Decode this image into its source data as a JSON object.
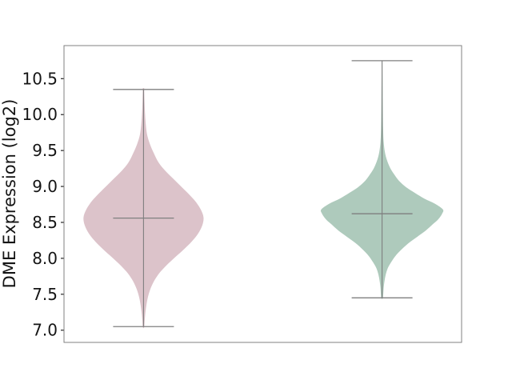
{
  "chart_data": {
    "type": "violin",
    "title": "",
    "ylabel": "DME Expression (log2)",
    "ylim": [
      6.83,
      10.96
    ],
    "yticks": [
      10.5,
      10.0,
      9.5,
      9.0,
      8.5,
      8.0,
      7.5,
      7.0
    ],
    "ytick_decimals": 1,
    "xtick_labels_visible": false,
    "grid": false,
    "legend": null,
    "axes": {
      "spine_color": "#808080",
      "tick_color": "#262626",
      "text_color": "#151515",
      "background": "#ffffff"
    },
    "series": [
      {
        "name": "violin-left",
        "x_frac": 0.2,
        "fill_color": "#dcc3ca",
        "line_color": "#7f7f7f",
        "stats": {
          "whisker_low": 7.05,
          "median": 8.56,
          "whisker_high": 10.35
        },
        "density_profile": [
          [
            10.37,
            0.8
          ],
          [
            10.2,
            1.2
          ],
          [
            10.03,
            1.8
          ],
          [
            9.87,
            2.8
          ],
          [
            9.72,
            4.5
          ],
          [
            9.59,
            8
          ],
          [
            9.46,
            13
          ],
          [
            9.33,
            19
          ],
          [
            9.22,
            27
          ],
          [
            9.12,
            36
          ],
          [
            9.01,
            46
          ],
          [
            8.9,
            56
          ],
          [
            8.79,
            65
          ],
          [
            8.68,
            71.5
          ],
          [
            8.57,
            75
          ],
          [
            8.46,
            73.5
          ],
          [
            8.34,
            68
          ],
          [
            8.23,
            60
          ],
          [
            8.12,
            50
          ],
          [
            8.01,
            39
          ],
          [
            7.9,
            28.5
          ],
          [
            7.79,
            19.5
          ],
          [
            7.68,
            13
          ],
          [
            7.57,
            8.5
          ],
          [
            7.46,
            5.5
          ],
          [
            7.34,
            3.5
          ],
          [
            7.23,
            2.2
          ],
          [
            7.14,
            1.5
          ],
          [
            7.04,
            0.8
          ]
        ]
      },
      {
        "name": "violin-right",
        "x_frac": 0.8,
        "fill_color": "#aecabc",
        "line_color": "#7f7f7f",
        "stats": {
          "whisker_low": 7.45,
          "median": 8.62,
          "whisker_high": 10.75
        },
        "density_profile": [
          [
            10.75,
            0.4
          ],
          [
            10.53,
            0.6
          ],
          [
            10.14,
            0.9
          ],
          [
            9.81,
            1.3
          ],
          [
            9.62,
            2
          ],
          [
            9.48,
            3.5
          ],
          [
            9.37,
            6
          ],
          [
            9.26,
            10
          ],
          [
            9.17,
            15
          ],
          [
            9.08,
            21
          ],
          [
            8.99,
            30
          ],
          [
            8.91,
            41
          ],
          [
            8.83,
            53
          ],
          [
            8.76,
            66
          ],
          [
            8.68,
            76
          ],
          [
            8.62,
            75
          ],
          [
            8.54,
            70
          ],
          [
            8.47,
            63
          ],
          [
            8.39,
            55
          ],
          [
            8.3,
            44
          ],
          [
            8.21,
            33
          ],
          [
            8.12,
            24
          ],
          [
            8.03,
            16.5
          ],
          [
            7.94,
            11
          ],
          [
            7.86,
            7
          ],
          [
            7.77,
            4.5
          ],
          [
            7.68,
            3
          ],
          [
            7.59,
            2
          ],
          [
            7.45,
            1
          ]
        ]
      }
    ]
  }
}
